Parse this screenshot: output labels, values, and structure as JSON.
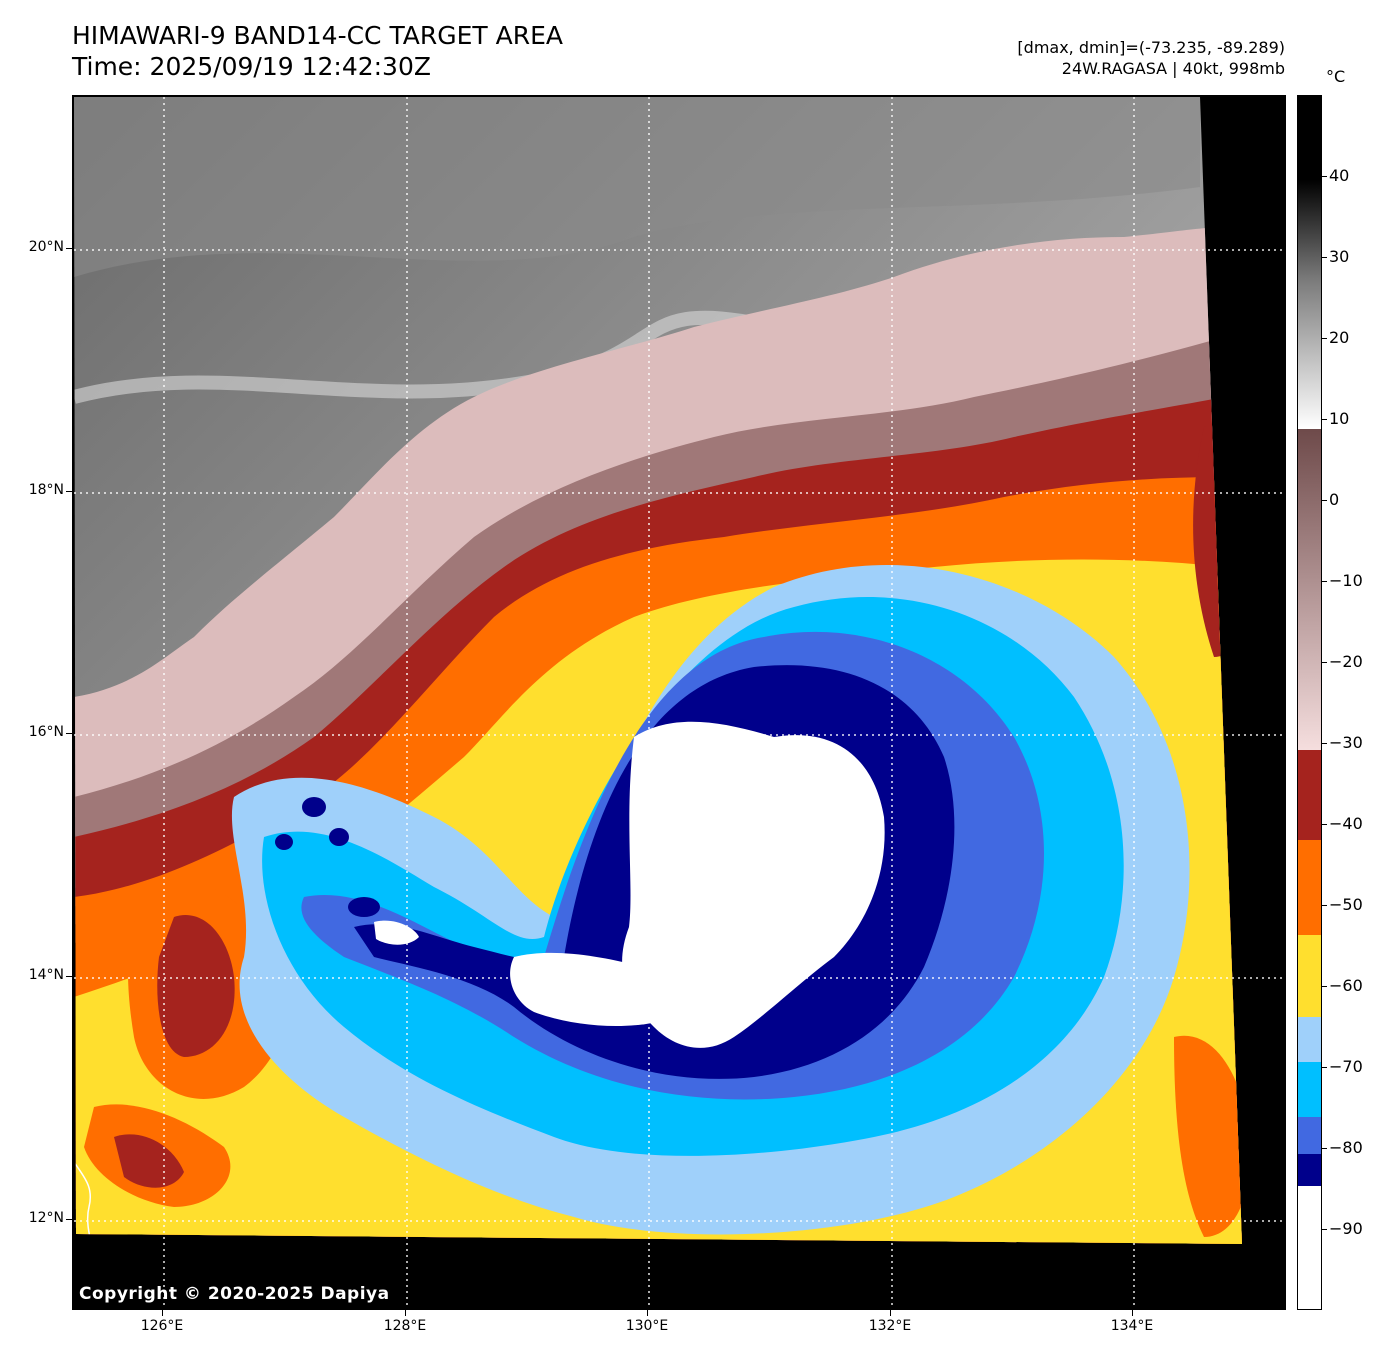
{
  "header": {
    "title_line1": "HIMAWARI-9 BAND14-CC TARGET AREA",
    "title_line2": "Time: 2025/09/19 12:42:30Z",
    "range_text": "[dmax, dmin]=(-73.235, -89.289)",
    "storm_text": "24W.RAGASA | 40kt, 998mb"
  },
  "map": {
    "lat_labels": [
      "20°N",
      "18°N",
      "16°N",
      "14°N",
      "12°N"
    ],
    "lon_labels": [
      "126°E",
      "128°E",
      "130°E",
      "132°E",
      "134°E"
    ],
    "copyright": "Copyright © 2020-2025 Dapiya"
  },
  "colorbar": {
    "unit": "°C",
    "tick_labels": [
      "40",
      "30",
      "20",
      "10",
      "0",
      "−10",
      "−20",
      "−30",
      "−40",
      "−50",
      "−60",
      "−70",
      "−80",
      "−90"
    ],
    "temp_min": -100,
    "temp_max": 50,
    "colors": {
      "warm_black": "#000000",
      "gray_mid": "#7a7a7a",
      "gray_light": "#f0f0f0",
      "brown_dark": "#6e4a4a",
      "pink_light": "#f5dede",
      "dark_red": "#a5231e",
      "orange": "#ff6e00",
      "yellow": "#ffdf2e",
      "light_blue": "#9fd0fa",
      "cyan": "#00bfff",
      "royal_blue": "#4169e1",
      "navy": "#00008b",
      "white": "#ffffff"
    }
  }
}
